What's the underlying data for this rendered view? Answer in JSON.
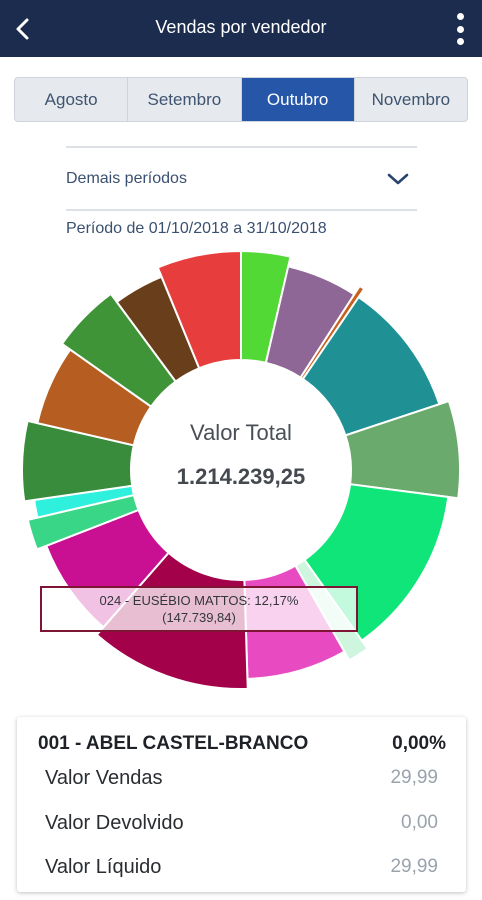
{
  "header": {
    "title": "Vendas por vendedor",
    "back_icon": "back-arrow-icon",
    "menu_icon": "more-vert-icon"
  },
  "tabs": [
    {
      "label": "Agosto",
      "active": false
    },
    {
      "label": "Setembro",
      "active": false
    },
    {
      "label": "Outubro",
      "active": true
    },
    {
      "label": "Novembro",
      "active": false
    }
  ],
  "periods": {
    "label": "Demais períodos",
    "icon": "chevron-down-icon"
  },
  "range": "Período de 01/10/2018 a 31/10/2018",
  "chart": {
    "center_label": "Valor Total",
    "center_value": "1.214.239,25",
    "tooltip_line1": "024 - EUSÉBIO MATTOS: 12,17%",
    "tooltip_line2": "(147.739,84)"
  },
  "chart_data": {
    "type": "pie",
    "total": "1.214.239,25",
    "slices": [
      {
        "color": "#52d936",
        "value": 3.7
      },
      {
        "color": "#8f6796",
        "value": 5.6
      },
      {
        "color": "#c7601f",
        "value": 0.4
      },
      {
        "color": "#1f9195",
        "value": 10.6
      },
      {
        "color": "#6aab6d",
        "value": 7.3
      },
      {
        "color": "#10e57a",
        "value": 13.4
      },
      {
        "color": "#cef5dd",
        "value": 1.6
      },
      {
        "color": "#e84bc1",
        "value": 7.9
      },
      {
        "color": "#a3024b",
        "value": 12.17
      },
      {
        "color": "#c90f92",
        "value": 7.8
      },
      {
        "color": "#3ad687",
        "value": 2.3
      },
      {
        "color": "#2ef0dc",
        "value": 1.4
      },
      {
        "color": "#3a8c3d",
        "value": 6.0
      },
      {
        "color": "#b65e22",
        "value": 6.3
      },
      {
        "color": "#3f9438",
        "value": 5.2
      },
      {
        "color": "#693e1b",
        "value": 4.0
      },
      {
        "color": "#e83d3d",
        "value": 6.33
      }
    ]
  },
  "card": {
    "name": "001 - ABEL CASTEL-BRANCO",
    "percent": "0,00%",
    "rows": [
      {
        "label": "Valor Vendas",
        "value": "29,99"
      },
      {
        "label": "Valor Devolvido",
        "value": "0,00"
      },
      {
        "label": "Valor Líquido",
        "value": "29,99"
      }
    ]
  }
}
